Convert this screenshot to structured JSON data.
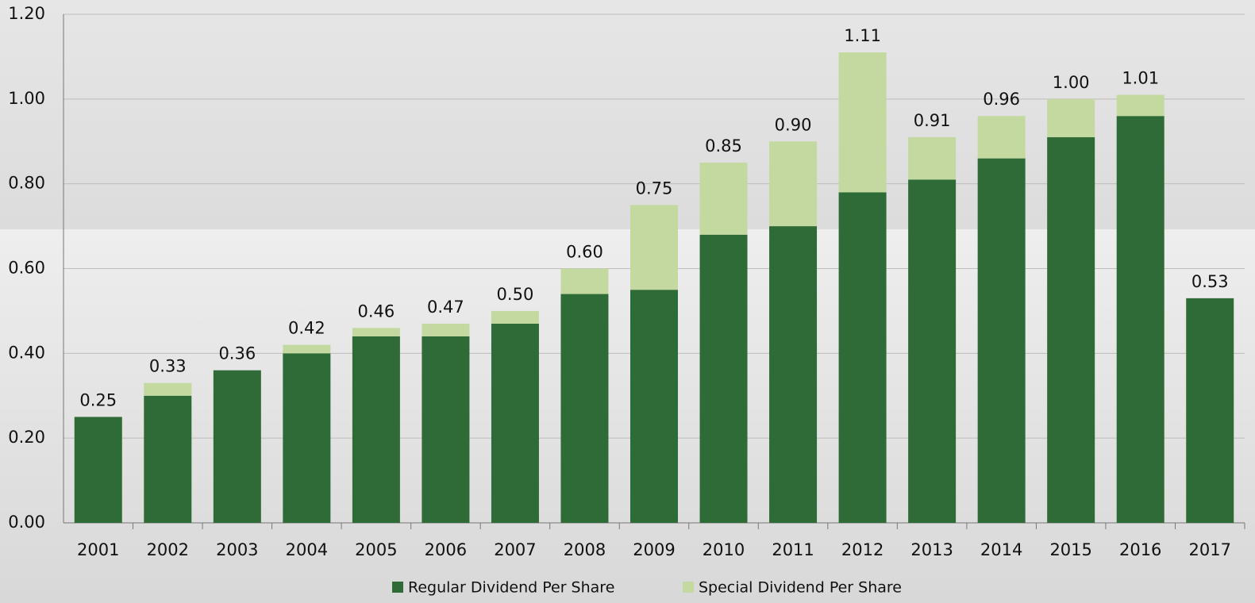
{
  "chart_data": {
    "type": "stacked_bar",
    "categories": [
      "2001",
      "2002",
      "2003",
      "2004",
      "2005",
      "2006",
      "2007",
      "2008",
      "2009",
      "2010",
      "2011",
      "2012",
      "2013",
      "2014",
      "2015",
      "2016",
      "2017"
    ],
    "series": [
      {
        "name": "Regular Dividend Per Share",
        "color": "#2f6b36",
        "values": [
          0.25,
          0.3,
          0.36,
          0.4,
          0.44,
          0.44,
          0.47,
          0.54,
          0.55,
          0.68,
          0.7,
          0.78,
          0.81,
          0.86,
          0.91,
          0.96,
          0.53
        ]
      },
      {
        "name": "Special Dividend Per Share",
        "color": "#c3d9a0",
        "values": [
          0,
          0.03,
          0,
          0.02,
          0.02,
          0.03,
          0.03,
          0.06,
          0.2,
          0.17,
          0.2,
          0.33,
          0.1,
          0.1,
          0.09,
          0.05,
          0
        ]
      }
    ],
    "totals": {
      "values": [
        0.25,
        0.33,
        0.36,
        0.42,
        0.46,
        0.47,
        0.5,
        0.6,
        0.75,
        0.85,
        0.9,
        1.11,
        0.91,
        0.96,
        1.0,
        1.01,
        0.53
      ],
      "value_labels": [
        "0.25",
        "0.33",
        "0.36",
        "0.42",
        "0.46",
        "0.47",
        "0.50",
        "0.60",
        "0.75",
        "0.85",
        "0.90",
        "1.11",
        "0.91",
        "0.96",
        "1.00",
        "1.01",
        "0.53"
      ]
    },
    "ylim": [
      0,
      1.2
    ],
    "yticks": [
      {
        "value": 0,
        "label": "0.00"
      },
      {
        "value": 0.2,
        "label": "0.20"
      },
      {
        "value": 0.4,
        "label": "0.40"
      },
      {
        "value": 0.6,
        "label": "0.60"
      },
      {
        "value": 0.8,
        "label": "0.80"
      },
      {
        "value": 1.0,
        "label": "1.00"
      },
      {
        "value": 1.2,
        "label": "1.20"
      }
    ],
    "grid": true,
    "legend": "bottom"
  }
}
